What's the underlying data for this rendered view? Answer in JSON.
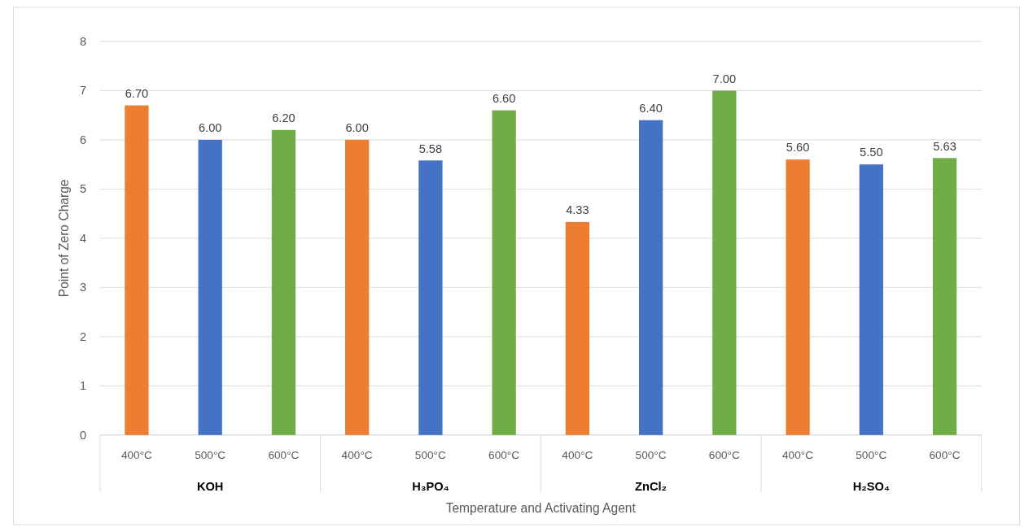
{
  "chart_data": {
    "type": "bar",
    "xlabel": "Temperature and Activating Agent",
    "ylabel": "Point of Zero Charge",
    "categories": [
      "KOH",
      "H₃PO₄",
      "ZnCl₂",
      "H₂SO₄"
    ],
    "series": [
      {
        "name": "400°C",
        "color": "#ed7d31",
        "values": [
          6.7,
          6.0,
          4.33,
          5.6
        ],
        "value_labels": [
          "6.70",
          "6.00",
          "4.33",
          "5.60"
        ]
      },
      {
        "name": "500°C",
        "color": "#4472c4",
        "values": [
          6.0,
          5.58,
          6.4,
          5.5
        ],
        "value_labels": [
          "6.00",
          "5.58",
          "6.40",
          "5.50"
        ]
      },
      {
        "name": "600°C",
        "color": "#70ad47",
        "values": [
          6.2,
          6.6,
          7.0,
          5.63
        ],
        "value_labels": [
          "6.20",
          "6.60",
          "7.00",
          "5.63"
        ]
      }
    ],
    "ylim": [
      0,
      8
    ],
    "yticks": [
      0,
      1,
      2,
      3,
      4,
      5,
      6,
      7,
      8
    ],
    "grid": "y"
  }
}
